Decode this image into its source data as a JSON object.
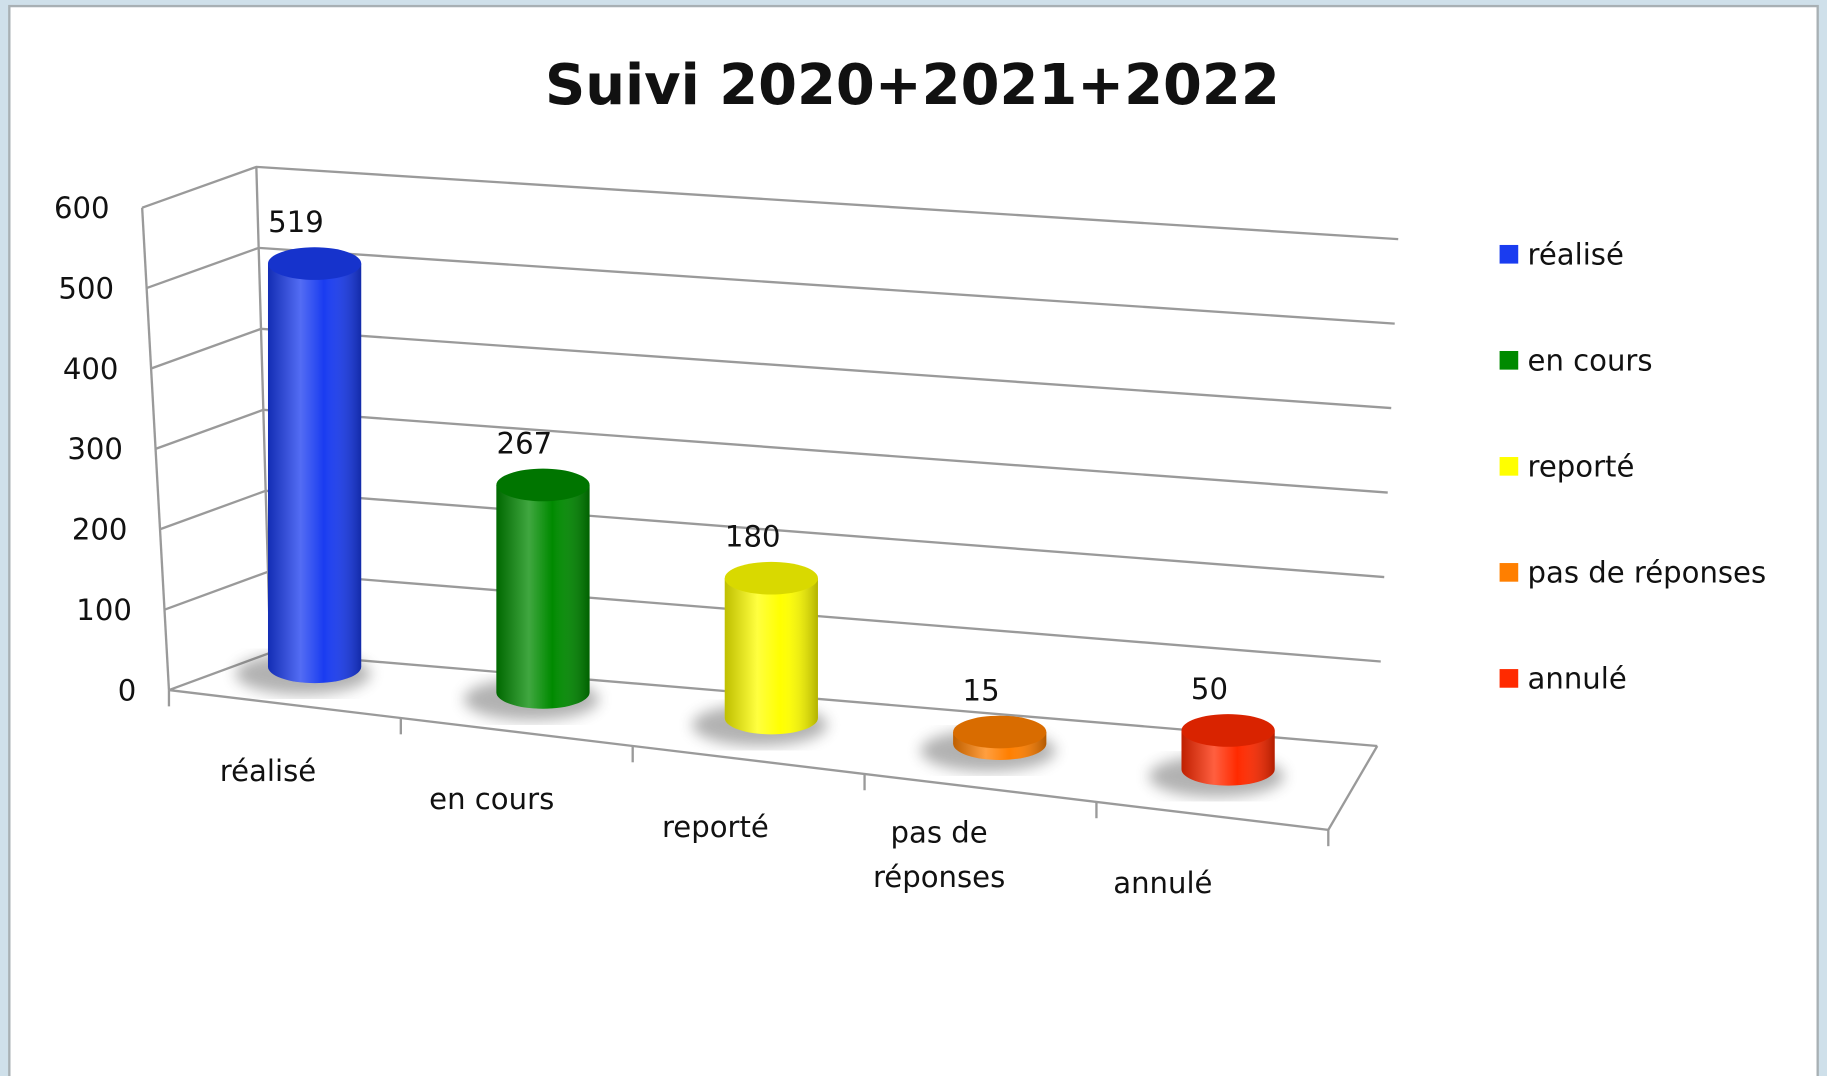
{
  "chart_data": {
    "type": "bar",
    "style": "3d-cylinder",
    "title": "Suivi 2020+2021+2022",
    "categories": [
      "réalisé",
      "en cours",
      "reporté",
      "pas de réponses",
      "annulé"
    ],
    "values": [
      519,
      267,
      180,
      15,
      50
    ],
    "colors": [
      "#1a3cf0",
      "#008a00",
      "#ffff00",
      "#ff7f00",
      "#ff2a00"
    ],
    "ylim": [
      0,
      600
    ],
    "yticks": [
      0,
      100,
      200,
      300,
      400,
      500,
      600
    ],
    "grid": true,
    "legend": "right",
    "data_labels": true
  }
}
